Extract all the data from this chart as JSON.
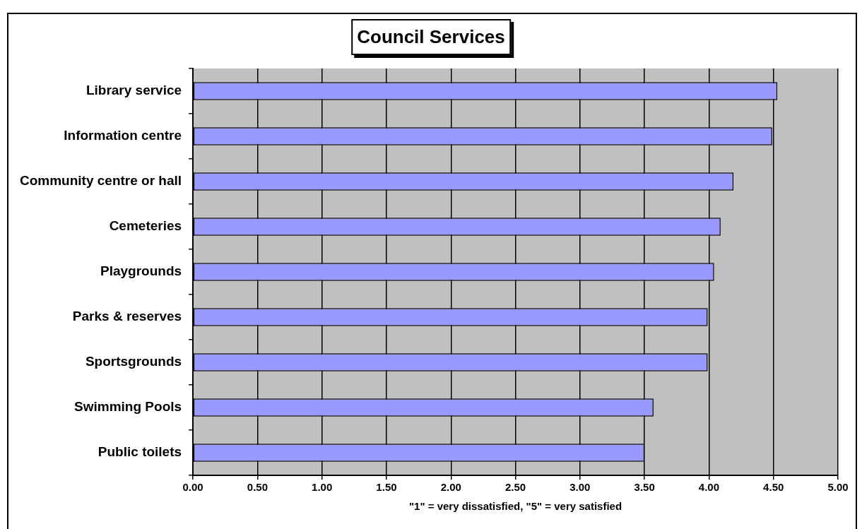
{
  "chart_data": {
    "type": "bar",
    "orientation": "horizontal",
    "title": "Council Services",
    "xlabel": "\"1\" = very dissatisfied, \"5\" = very satisfied",
    "categories": [
      "Library service",
      "Information centre",
      "Community centre or hall",
      "Cemeteries",
      "Playgrounds",
      "Parks & reserves",
      "Sportsgrounds",
      "Swimming Pools",
      "Public toilets"
    ],
    "values": [
      4.53,
      4.49,
      4.19,
      4.09,
      4.04,
      3.99,
      3.99,
      3.57,
      3.5
    ],
    "color": "#9999ff",
    "xlim": [
      0,
      5
    ],
    "xticks": [
      {
        "value": 0,
        "label": "0.00"
      },
      {
        "value": 0.5,
        "label": "0.50"
      },
      {
        "value": 1,
        "label": "1.00"
      },
      {
        "value": 1.5,
        "label": "1.50"
      },
      {
        "value": 2,
        "label": "2.00"
      },
      {
        "value": 2.5,
        "label": "2.50"
      },
      {
        "value": 3,
        "label": "3.00"
      },
      {
        "value": 3.5,
        "label": "3.50"
      },
      {
        "value": 4,
        "label": "4.00"
      },
      {
        "value": 4.5,
        "label": "4.50"
      },
      {
        "value": 5,
        "label": "5.00"
      }
    ],
    "grid": "x",
    "legend": false
  }
}
